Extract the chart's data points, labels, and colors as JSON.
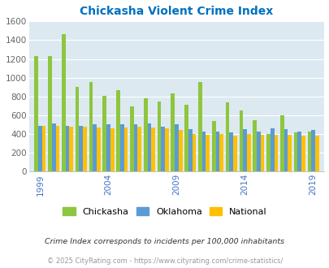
{
  "title": "Chickasha Violent Crime Index",
  "years": [
    1999,
    2000,
    2001,
    2002,
    2003,
    2004,
    2005,
    2006,
    2007,
    2008,
    2009,
    2010,
    2011,
    2012,
    2013,
    2014,
    2015,
    2016,
    2017,
    2018,
    2019
  ],
  "chickasha": [
    1230,
    1230,
    1460,
    900,
    950,
    810,
    870,
    690,
    780,
    750,
    830,
    710,
    950,
    540,
    740,
    650,
    550,
    400,
    600,
    420,
    430
  ],
  "oklahoma": [
    490,
    510,
    490,
    490,
    500,
    500,
    500,
    500,
    510,
    480,
    500,
    450,
    430,
    430,
    420,
    450,
    430,
    460,
    450,
    430,
    440
  ],
  "national": [
    490,
    490,
    480,
    480,
    470,
    460,
    470,
    480,
    470,
    460,
    440,
    400,
    390,
    400,
    380,
    400,
    390,
    390,
    390,
    380,
    380
  ],
  "ylim": [
    0,
    1600
  ],
  "yticks": [
    0,
    200,
    400,
    600,
    800,
    1000,
    1200,
    1400,
    1600
  ],
  "xtick_years": [
    1999,
    2004,
    2009,
    2014,
    2019
  ],
  "xtick_indices": [
    0,
    5,
    10,
    15,
    20
  ],
  "bar_width": 0.28,
  "chickasha_color": "#8dc63f",
  "oklahoma_color": "#5b9bd5",
  "national_color": "#ffc000",
  "bg_color": "#dce9f0",
  "grid_color": "#ffffff",
  "title_color": "#0070c0",
  "axis_tick_color": "#4472c4",
  "ytick_color": "#666666",
  "legend_labels": [
    "Chickasha",
    "Oklahoma",
    "National"
  ],
  "footnote1": "Crime Index corresponds to incidents per 100,000 inhabitants",
  "footnote2": "© 2025 CityRating.com - https://www.cityrating.com/crime-statistics/",
  "footnote1_color": "#333333",
  "footnote2_color": "#999999"
}
